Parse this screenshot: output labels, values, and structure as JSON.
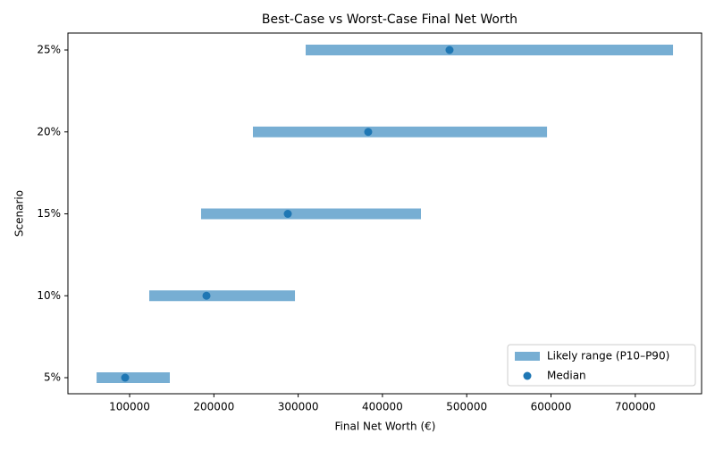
{
  "chart_data": {
    "type": "range",
    "title": "Best-Case vs Worst-Case Final Net Worth",
    "x_label": "Final Net Worth (€)",
    "y_label": "Scenario",
    "categories": [
      "5%",
      "10%",
      "15%",
      "20%",
      "25%"
    ],
    "series": [
      {
        "name": "Likely range (P10–P90)",
        "color": "#77aed3",
        "low": [
          60800,
          123300,
          184800,
          246300,
          308900
        ],
        "high": [
          147700,
          296200,
          445700,
          595300,
          744800
        ]
      },
      {
        "name": "Median",
        "color": "#1f77b4",
        "values": [
          94700,
          191200,
          287700,
          383100,
          479600
        ]
      }
    ],
    "xlim": [
      26800,
      778700
    ],
    "xticks": [
      100000,
      200000,
      300000,
      400000,
      500000,
      600000,
      700000
    ],
    "legend": "lower right"
  }
}
